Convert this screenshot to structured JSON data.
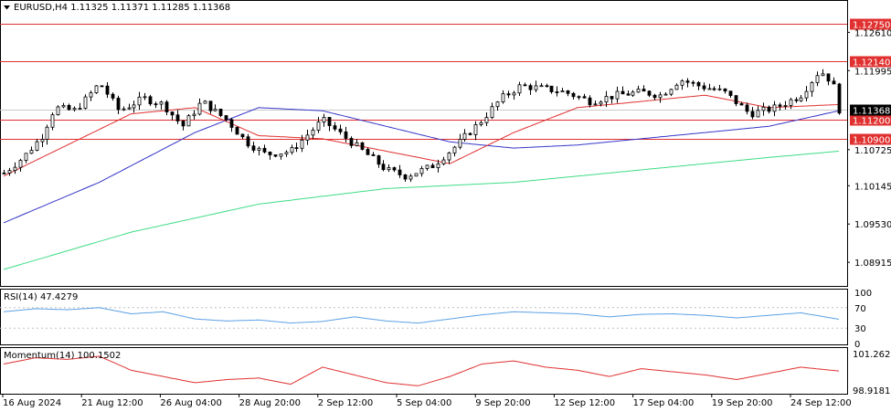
{
  "header": {
    "arrow_icon": "triangle-down-icon",
    "text": "EURUSD,H4  1.11325 1.11371 1.11285 1.11368"
  },
  "price_axis": {
    "ticks": [
      "1.12610",
      "1.11995",
      "1.10725",
      "1.10145",
      "1.09530",
      "1.08915"
    ],
    "ylim": [
      1.0855,
      1.131
    ]
  },
  "levels": [
    {
      "label": "1.12750",
      "value": 1.1275,
      "color": "#e03030"
    },
    {
      "label": "1.12140",
      "value": 1.1214,
      "color": "#e03030"
    },
    {
      "label": "1.11200",
      "value": 1.112,
      "color": "#e03030"
    },
    {
      "label": "1.10900",
      "value": 1.109,
      "color": "#e03030"
    }
  ],
  "current_price": {
    "label": "1.11368",
    "value": 1.11368
  },
  "rsi_panel": {
    "title": "RSI(14) 47.4279",
    "ticks": [
      "100",
      "70",
      "30",
      "0"
    ],
    "levels": [
      70,
      30
    ],
    "ylim": [
      0,
      100
    ],
    "color": "#5aa0e6"
  },
  "momentum_panel": {
    "title": "Momentum(14) 100.1502",
    "ticks": [
      "101.2621",
      "98.9181"
    ],
    "ylim": [
      98.75,
      101.45
    ],
    "color": "#e03030"
  },
  "time_axis": {
    "labels": [
      "16 Aug 2024",
      "21 Aug 12:00",
      "26 Aug 04:00",
      "28 Aug 20:00",
      "2 Sep 12:00",
      "5 Sep 04:00",
      "9 Sep 20:00",
      "12 Sep 12:00",
      "17 Sep 04:00",
      "19 Sep 20:00",
      "24 Sep 12:00"
    ]
  },
  "chart_data": {
    "type": "candlestick",
    "symbol": "EURUSD",
    "timeframe": "H4",
    "bar_count": 155,
    "price_keypoints": [
      [
        0,
        1.1035
      ],
      [
        6,
        1.106
      ],
      [
        12,
        1.1095
      ],
      [
        16,
        1.114
      ],
      [
        22,
        1.1135
      ],
      [
        26,
        1.1155
      ],
      [
        30,
        1.118
      ],
      [
        36,
        1.1135
      ],
      [
        44,
        1.1155
      ],
      [
        50,
        1.1145
      ],
      [
        56,
        1.111
      ],
      [
        62,
        1.115
      ],
      [
        70,
        1.112
      ],
      [
        76,
        1.1085
      ],
      [
        82,
        1.1065
      ],
      [
        90,
        1.107
      ],
      [
        100,
        1.112
      ],
      [
        110,
        1.108
      ],
      [
        120,
        1.104
      ],
      [
        126,
        1.103
      ],
      [
        134,
        1.1045
      ],
      [
        142,
        1.108
      ],
      [
        150,
        1.112
      ],
      [
        156,
        1.1155
      ],
      [
        162,
        1.1175
      ],
      [
        170,
        1.117
      ],
      [
        176,
        1.1165
      ],
      [
        184,
        1.115
      ],
      [
        192,
        1.116
      ],
      [
        200,
        1.1165
      ],
      [
        206,
        1.116
      ],
      [
        212,
        1.1185
      ],
      [
        218,
        1.1175
      ],
      [
        226,
        1.1165
      ],
      [
        234,
        1.113
      ],
      [
        242,
        1.114
      ],
      [
        250,
        1.116
      ],
      [
        256,
        1.12
      ],
      [
        260,
        1.118
      ],
      [
        262,
        1.1137
      ]
    ],
    "ma_red_keypoints": [
      [
        0,
        1.103
      ],
      [
        20,
        1.108
      ],
      [
        40,
        1.113
      ],
      [
        60,
        1.114
      ],
      [
        80,
        1.1095
      ],
      [
        100,
        1.109
      ],
      [
        120,
        1.107
      ],
      [
        140,
        1.105
      ],
      [
        160,
        1.11
      ],
      [
        180,
        1.114
      ],
      [
        200,
        1.115
      ],
      [
        220,
        1.116
      ],
      [
        240,
        1.114
      ],
      [
        262,
        1.1145
      ]
    ],
    "ma_blue_keypoints": [
      [
        0,
        1.0955
      ],
      [
        30,
        1.102
      ],
      [
        60,
        1.11
      ],
      [
        80,
        1.114
      ],
      [
        100,
        1.1135
      ],
      [
        120,
        1.111
      ],
      [
        140,
        1.1085
      ],
      [
        160,
        1.1075
      ],
      [
        180,
        1.108
      ],
      [
        200,
        1.109
      ],
      [
        220,
        1.11
      ],
      [
        240,
        1.111
      ],
      [
        262,
        1.1135
      ]
    ],
    "ma_green_keypoints": [
      [
        0,
        1.088
      ],
      [
        40,
        1.094
      ],
      [
        80,
        1.0985
      ],
      [
        120,
        1.101
      ],
      [
        160,
        1.102
      ],
      [
        200,
        1.104
      ],
      [
        240,
        1.106
      ],
      [
        262,
        1.107
      ]
    ],
    "rsi_keypoints": [
      [
        0,
        62
      ],
      [
        10,
        68
      ],
      [
        20,
        66
      ],
      [
        30,
        70
      ],
      [
        40,
        58
      ],
      [
        50,
        62
      ],
      [
        60,
        48
      ],
      [
        70,
        44
      ],
      [
        80,
        46
      ],
      [
        90,
        40
      ],
      [
        100,
        43
      ],
      [
        110,
        52
      ],
      [
        120,
        44
      ],
      [
        130,
        40
      ],
      [
        140,
        48
      ],
      [
        150,
        56
      ],
      [
        160,
        62
      ],
      [
        170,
        60
      ],
      [
        180,
        58
      ],
      [
        190,
        52
      ],
      [
        200,
        57
      ],
      [
        210,
        58
      ],
      [
        220,
        55
      ],
      [
        230,
        50
      ],
      [
        240,
        55
      ],
      [
        250,
        60
      ],
      [
        262,
        47.4
      ]
    ],
    "momentum_keypoints": [
      [
        0,
        100.6
      ],
      [
        10,
        101.0
      ],
      [
        20,
        100.9
      ],
      [
        30,
        101.1
      ],
      [
        40,
        100.2
      ],
      [
        50,
        99.8
      ],
      [
        60,
        99.4
      ],
      [
        70,
        99.6
      ],
      [
        80,
        99.7
      ],
      [
        90,
        99.3
      ],
      [
        100,
        100.4
      ],
      [
        110,
        99.9
      ],
      [
        120,
        99.4
      ],
      [
        130,
        99.2
      ],
      [
        140,
        99.8
      ],
      [
        150,
        100.6
      ],
      [
        160,
        100.8
      ],
      [
        170,
        100.4
      ],
      [
        180,
        100.2
      ],
      [
        190,
        99.8
      ],
      [
        200,
        100.3
      ],
      [
        210,
        100.1
      ],
      [
        220,
        99.9
      ],
      [
        230,
        99.6
      ],
      [
        240,
        100.0
      ],
      [
        250,
        100.4
      ],
      [
        262,
        100.15
      ]
    ]
  }
}
